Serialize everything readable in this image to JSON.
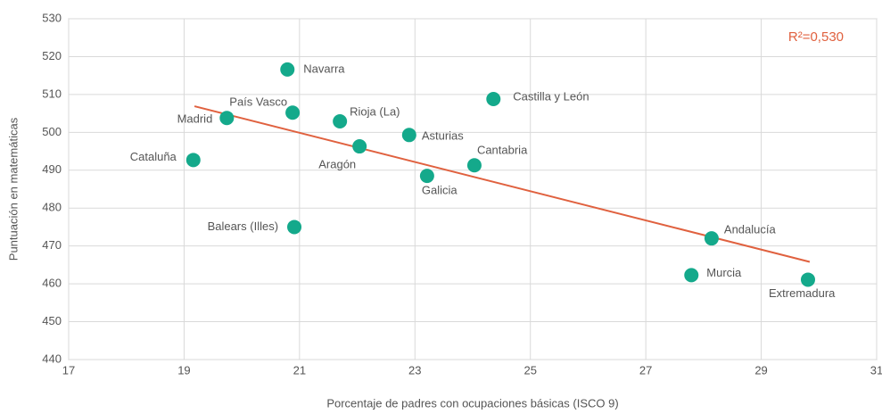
{
  "chart_data": {
    "type": "scatter",
    "x_label": "Porcentaje de padres con ocupaciones básicas (ISCO 9)",
    "y_label": "Puntuación en matemáticas",
    "annotation": "R²=0,530",
    "series": [
      {
        "color": "#14a98b",
        "labels": [
          "Navarra",
          "País Vasco",
          "Madrid",
          "Rioja (La)",
          "Castilla y León",
          "Asturias",
          "Aragón",
          "Cataluña",
          "Cantabria",
          "Galicia",
          "Balears (Illes)",
          "Andalucía",
          "Murcia",
          "Extremadura"
        ],
        "x": [
          20.79,
          20.88,
          19.74,
          21.7,
          24.36,
          22.9,
          22.04,
          19.16,
          24.03,
          23.21,
          20.91,
          28.14,
          27.79,
          29.81
        ],
        "values": [
          516.6,
          505.2,
          503.8,
          502.9,
          508.8,
          499.3,
          496.3,
          492.7,
          491.3,
          488.5,
          475.0,
          472.0,
          462.3,
          461.1
        ]
      }
    ],
    "trendline": {
      "color": "#e0613f",
      "x": [
        19.18,
        29.84
      ],
      "values": [
        506.9,
        465.8
      ]
    },
    "xlim": [
      17,
      31
    ],
    "xticks": [
      17,
      19,
      21,
      23,
      25,
      27,
      29,
      31
    ],
    "ylim": [
      440,
      530
    ],
    "yticks": [
      440,
      450,
      460,
      470,
      480,
      490,
      500,
      510,
      520,
      530
    ],
    "grid": true
  }
}
